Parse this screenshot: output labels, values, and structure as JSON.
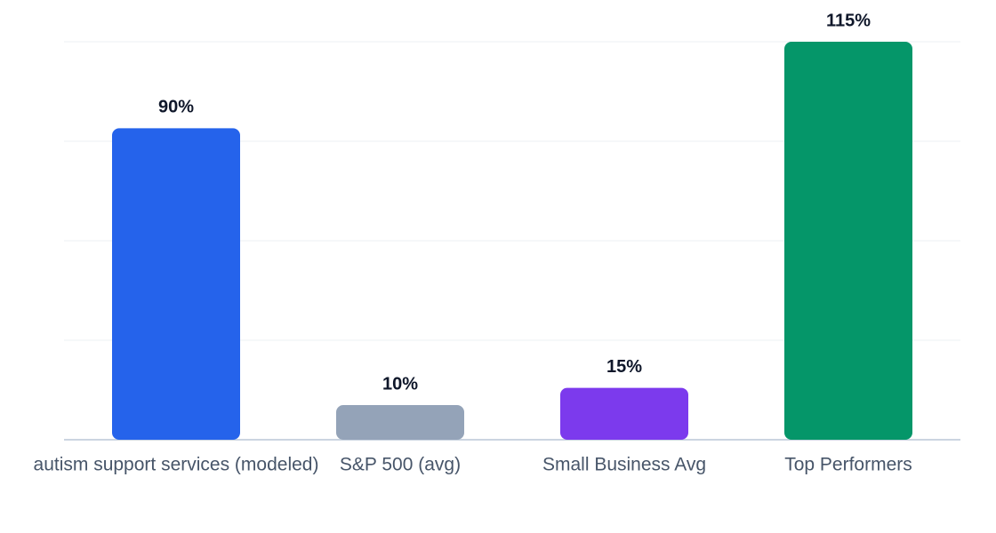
{
  "chart_data": {
    "type": "bar",
    "categories": [
      "autism support services (modeled)",
      "S&P 500 (avg)",
      "Small Business Avg",
      "Top Performers"
    ],
    "values": [
      90,
      10,
      15,
      115
    ],
    "value_labels": [
      "90%",
      "10%",
      "15%",
      "115%"
    ],
    "colors": [
      "#2563eb",
      "#94a3b8",
      "#7c3aed",
      "#059669"
    ],
    "ylim": [
      0,
      115
    ],
    "yticks": [
      0,
      28.75,
      57.5,
      86.25,
      115
    ],
    "grid": true
  }
}
